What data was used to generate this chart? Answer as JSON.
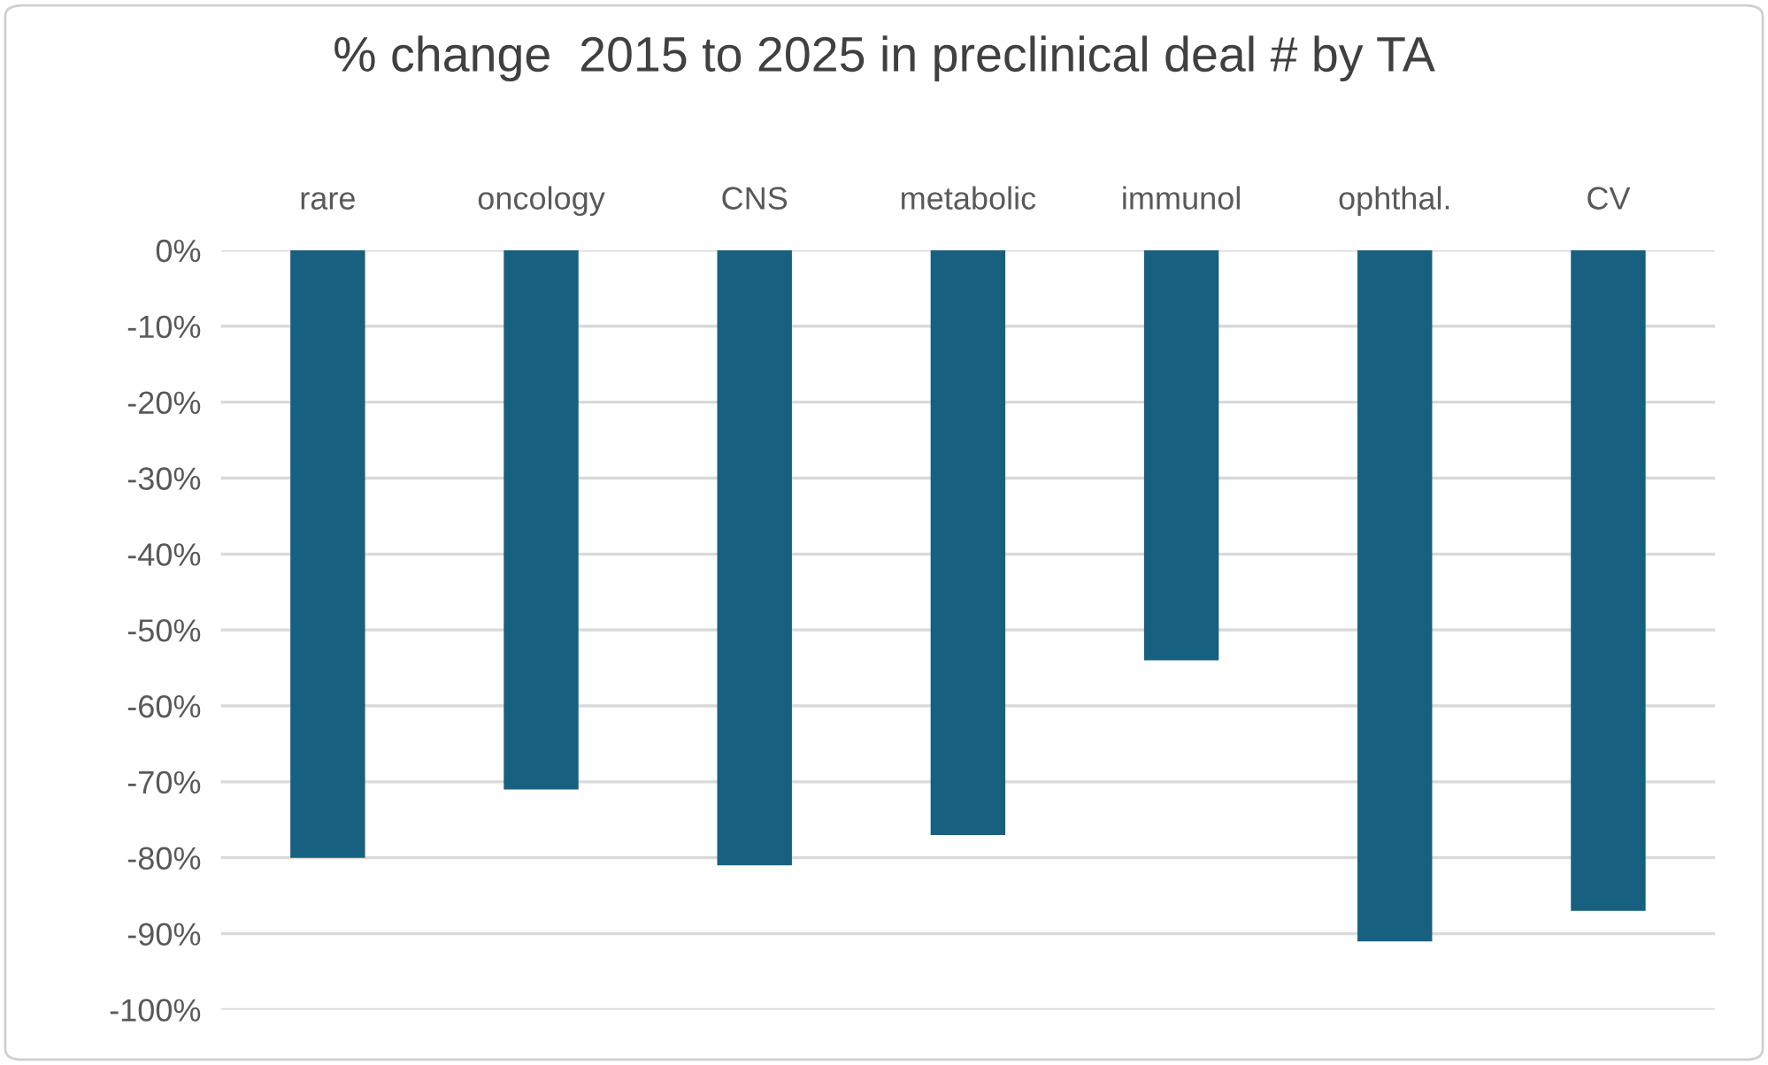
{
  "chart_data": {
    "type": "bar",
    "title": "% change  2015 to 2025 in preclinical deal # by TA",
    "categories": [
      "rare",
      "oncology",
      "CNS",
      "metabolic",
      "immunol",
      "ophthal.",
      "CV"
    ],
    "values": [
      -80,
      -71,
      -81,
      -77,
      -54,
      -91,
      -87
    ],
    "color": "#17607f",
    "ylim": [
      -100,
      0
    ],
    "yticks": [
      {
        "value": 0,
        "label": "0%"
      },
      {
        "value": -10,
        "label": "-10%"
      },
      {
        "value": -20,
        "label": "-20%"
      },
      {
        "value": -30,
        "label": "-30%"
      },
      {
        "value": -40,
        "label": "-40%"
      },
      {
        "value": -50,
        "label": "-50%"
      },
      {
        "value": -60,
        "label": "-60%"
      },
      {
        "value": -70,
        "label": "-70%"
      },
      {
        "value": -80,
        "label": "-80%"
      },
      {
        "value": -90,
        "label": "-90%"
      },
      {
        "value": -100,
        "label": "-100%"
      }
    ],
    "grid": "y",
    "legend": false
  }
}
